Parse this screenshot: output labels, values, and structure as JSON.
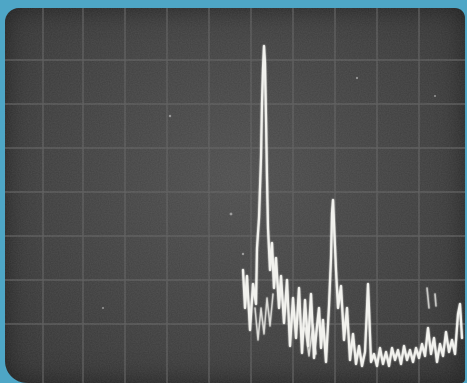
{
  "scene": {
    "description_type": "oscilloscope-photograph",
    "colors": {
      "border": "#4ea6c6",
      "screen": "#3f3f3f",
      "grid": "#5a5a5a",
      "trace": "#f2f2ee"
    }
  }
}
